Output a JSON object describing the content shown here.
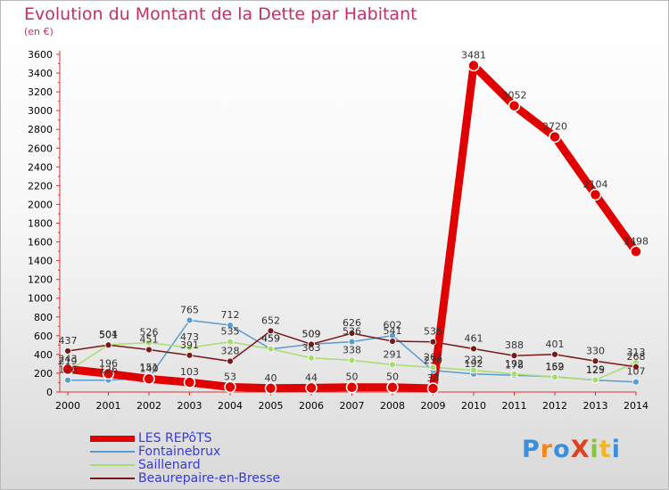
{
  "title": "Evolution du Montant de la Dette par Habitant",
  "subtitle": "(en €)",
  "logo": "ProXiti",
  "chart_data": {
    "type": "line",
    "categories": [
      "2000",
      "2001",
      "2002",
      "2003",
      "2004",
      "2005",
      "2006",
      "2007",
      "2008",
      "2009",
      "2010",
      "2011",
      "2012",
      "2013",
      "2014"
    ],
    "ylim": [
      0,
      3600
    ],
    "yticks": [
      0,
      200,
      400,
      600,
      800,
      1000,
      1200,
      1400,
      1600,
      1800,
      2000,
      2200,
      2400,
      2600,
      2800,
      3000,
      3200,
      3400,
      3600
    ],
    "grid": false,
    "legend_position": "bottom-left",
    "series": [
      {
        "name": "LES REPôTS",
        "color": "#e00000",
        "values": [
          243,
          196,
          140,
          103,
          53,
          40,
          44,
          50,
          50,
          38,
          3481,
          3052,
          2720,
          2104,
          1498
        ]
      },
      {
        "name": "Fontainebrux",
        "color": "#5a9bd0",
        "values": [
          126,
          126,
          151,
          765,
          712,
          459,
          509,
          536,
          602,
          230,
          192,
          178,
          162,
          125,
          107
        ]
      },
      {
        "name": "Saillenard",
        "color": "#a8dc70",
        "values": [
          219,
          504,
          526,
          473,
          535,
          459,
          363,
          338,
          291,
          262,
          232,
          192,
          159,
          129,
          313
        ]
      },
      {
        "name": "Beaurepaire-en-Bresse",
        "color": "#7a1818",
        "values": [
          437,
          501,
          451,
          391,
          328,
          652,
          509,
          626,
          541,
          535,
          461,
          388,
          401,
          330,
          268
        ]
      }
    ]
  }
}
